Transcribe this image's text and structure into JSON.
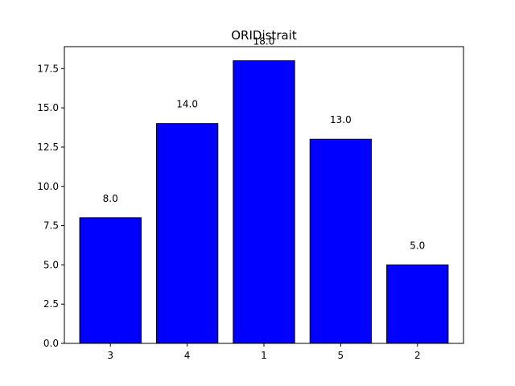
{
  "chart_data": {
    "type": "bar",
    "title": "ORIDistrait",
    "xlabel": "",
    "ylabel": "",
    "categories": [
      "3",
      "4",
      "1",
      "5",
      "2"
    ],
    "values": [
      8.0,
      14.0,
      18.0,
      13.0,
      5.0
    ],
    "value_labels": [
      "8.0",
      "14.0",
      "18.0",
      "13.0",
      "5.0"
    ],
    "ylim": [
      0,
      18.9
    ],
    "yticks": [
      0.0,
      2.5,
      5.0,
      7.5,
      10.0,
      12.5,
      15.0,
      17.5
    ],
    "ytick_labels": [
      "0.0",
      "2.5",
      "5.0",
      "7.5",
      "10.0",
      "12.5",
      "15.0",
      "17.5"
    ],
    "grid": false,
    "legend": "none",
    "bar_color": "#0000ff",
    "bar_edge_color": "#000000"
  }
}
